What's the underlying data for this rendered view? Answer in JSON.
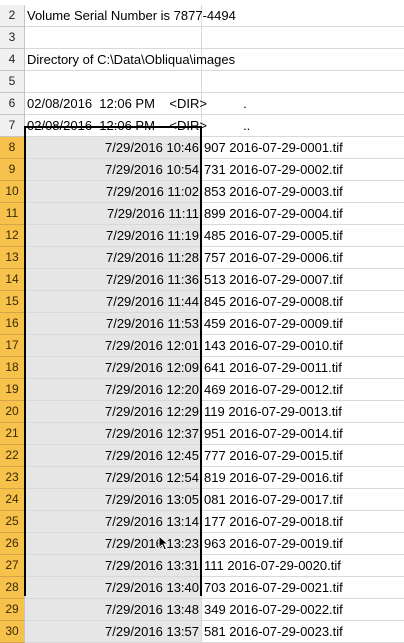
{
  "sheet": {
    "top_rows": [
      {
        "num": "2",
        "a": "Volume Serial Number is 7877-4494",
        "b": ""
      },
      {
        "num": "3",
        "a": "",
        "b": ""
      },
      {
        "num": "4",
        "a": "Directory of C:\\Data\\Obliqua\\images",
        "b": ""
      },
      {
        "num": "5",
        "a": "",
        "b": ""
      },
      {
        "num": "6",
        "a": "02/08/2016  12:06 PM    <DIR>          .",
        "b": ""
      },
      {
        "num": "7",
        "a": "02/08/2016  12:06 PM    <DIR>          ..",
        "b": ""
      }
    ],
    "data_rows": [
      {
        "num": "8",
        "a": "7/29/2016 10:46",
        "b": "907 2016-07-29-0001.tif"
      },
      {
        "num": "9",
        "a": "7/29/2016 10:54",
        "b": "731 2016-07-29-0002.tif"
      },
      {
        "num": "10",
        "a": "7/29/2016 11:02",
        "b": "853 2016-07-29-0003.tif"
      },
      {
        "num": "11",
        "a": "7/29/2016 11:11",
        "b": "899 2016-07-29-0004.tif"
      },
      {
        "num": "12",
        "a": "7/29/2016 11:19",
        "b": "485 2016-07-29-0005.tif"
      },
      {
        "num": "13",
        "a": "7/29/2016 11:28",
        "b": "757 2016-07-29-0006.tif"
      },
      {
        "num": "14",
        "a": "7/29/2016 11:36",
        "b": "513 2016-07-29-0007.tif"
      },
      {
        "num": "15",
        "a": "7/29/2016 11:44",
        "b": "845 2016-07-29-0008.tif"
      },
      {
        "num": "16",
        "a": "7/29/2016 11:53",
        "b": "459 2016-07-29-0009.tif"
      },
      {
        "num": "17",
        "a": "7/29/2016 12:01",
        "b": "143 2016-07-29-0010.tif"
      },
      {
        "num": "18",
        "a": "7/29/2016 12:09",
        "b": "641 2016-07-29-0011.tif"
      },
      {
        "num": "19",
        "a": "7/29/2016 12:20",
        "b": "469 2016-07-29-0012.tif"
      },
      {
        "num": "20",
        "a": "7/29/2016 12:29",
        "b": "119 2016-07-29-0013.tif"
      },
      {
        "num": "21",
        "a": "7/29/2016 12:37",
        "b": "951 2016-07-29-0014.tif"
      },
      {
        "num": "22",
        "a": "7/29/2016 12:45",
        "b": "777 2016-07-29-0015.tif"
      },
      {
        "num": "23",
        "a": "7/29/2016 12:54",
        "b": "819 2016-07-29-0016.tif"
      },
      {
        "num": "24",
        "a": "7/29/2016 13:05",
        "b": "081 2016-07-29-0017.tif"
      },
      {
        "num": "25",
        "a": "7/29/2016 13:14",
        "b": "177 2016-07-29-0018.tif"
      },
      {
        "num": "26",
        "a": "7/29/2016 13:23",
        "b": "963 2016-07-29-0019.tif"
      },
      {
        "num": "27",
        "a": "7/29/2016 13:31",
        "b": "111 2016-07-29-0020.tif"
      },
      {
        "num": "28",
        "a": "7/29/2016 13:40",
        "b": "703 2016-07-29-0021.tif"
      },
      {
        "num": "29",
        "a": "7/29/2016 13:48",
        "b": "349 2016-07-29-0022.tif"
      },
      {
        "num": "30",
        "a": "7/29/2016 13:57",
        "b": "581 2016-07-29-0023.tif"
      }
    ]
  },
  "colors": {
    "selected_header": "#f7c24c",
    "selected_cell": "#e6e6e6",
    "selection_border": "#000000"
  },
  "cursor_icon": "mouse-pointer-icon"
}
